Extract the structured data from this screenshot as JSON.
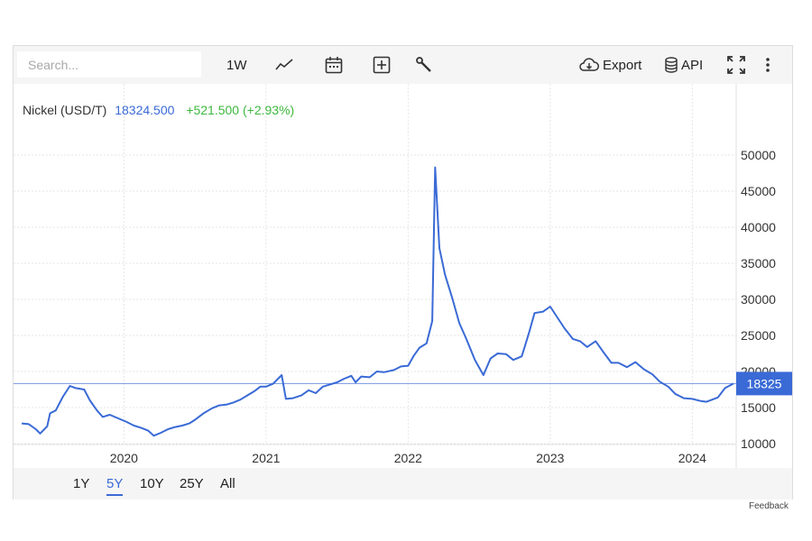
{
  "search": {
    "placeholder": "Search..."
  },
  "toolbar": {
    "interval_label": "1W",
    "export_label": "Export",
    "api_label": "API"
  },
  "legend": {
    "name": "Nickel (USD/T)",
    "price": "18324.500",
    "change": "+521.500 (+2.93%)"
  },
  "ranges": [
    "1Y",
    "5Y",
    "10Y",
    "25Y",
    "All"
  ],
  "active_range": "5Y",
  "feedback_label": "Feedback",
  "colors": {
    "line": "#3a6ad6",
    "change": "#3db83d",
    "price_tag": "#3a6ad6"
  },
  "chart_data": {
    "type": "line",
    "title": "Nickel (USD/T)",
    "ylim": [
      5000,
      50000
    ],
    "y_ticks": [
      10000,
      15000,
      20000,
      25000,
      30000,
      35000,
      40000,
      45000,
      50000
    ],
    "x_ticks": [
      "2020",
      "2021",
      "2022",
      "2023",
      "2024"
    ],
    "x_range": [
      2019.28,
      2024.29
    ],
    "last_value": 18325,
    "last_value_label": "18325",
    "grid": true,
    "series": [
      {
        "name": "Nickel (USD/T)",
        "points": [
          [
            2019.28,
            12800
          ],
          [
            2019.33,
            12700
          ],
          [
            2019.38,
            12000
          ],
          [
            2019.41,
            11400
          ],
          [
            2019.46,
            12400
          ],
          [
            2019.48,
            14200
          ],
          [
            2019.52,
            14600
          ],
          [
            2019.57,
            16500
          ],
          [
            2019.62,
            18000
          ],
          [
            2019.66,
            17700
          ],
          [
            2019.72,
            17500
          ],
          [
            2019.76,
            16000
          ],
          [
            2019.81,
            14600
          ],
          [
            2019.85,
            13700
          ],
          [
            2019.9,
            14000
          ],
          [
            2019.96,
            13500
          ],
          [
            2020.02,
            13000
          ],
          [
            2020.07,
            12500
          ],
          [
            2020.12,
            12200
          ],
          [
            2020.17,
            11800
          ],
          [
            2020.21,
            11100
          ],
          [
            2020.26,
            11500
          ],
          [
            2020.31,
            12000
          ],
          [
            2020.36,
            12300
          ],
          [
            2020.41,
            12500
          ],
          [
            2020.46,
            12800
          ],
          [
            2020.5,
            13300
          ],
          [
            2020.56,
            14200
          ],
          [
            2020.62,
            14900
          ],
          [
            2020.67,
            15300
          ],
          [
            2020.72,
            15400
          ],
          [
            2020.77,
            15700
          ],
          [
            2020.82,
            16100
          ],
          [
            2020.87,
            16700
          ],
          [
            2020.92,
            17300
          ],
          [
            2020.96,
            17900
          ],
          [
            2021.0,
            17900
          ],
          [
            2021.05,
            18300
          ],
          [
            2021.11,
            19500
          ],
          [
            2021.14,
            16200
          ],
          [
            2021.19,
            16300
          ],
          [
            2021.25,
            16700
          ],
          [
            2021.3,
            17400
          ],
          [
            2021.35,
            17000
          ],
          [
            2021.4,
            17900
          ],
          [
            2021.45,
            18200
          ],
          [
            2021.5,
            18500
          ],
          [
            2021.55,
            19000
          ],
          [
            2021.6,
            19400
          ],
          [
            2021.63,
            18500
          ],
          [
            2021.67,
            19300
          ],
          [
            2021.73,
            19200
          ],
          [
            2021.78,
            20000
          ],
          [
            2021.83,
            19900
          ],
          [
            2021.9,
            20200
          ],
          [
            2021.95,
            20700
          ],
          [
            2022.0,
            20800
          ],
          [
            2022.04,
            22200
          ],
          [
            2022.08,
            23300
          ],
          [
            2022.13,
            23900
          ],
          [
            2022.17,
            27000
          ],
          [
            2022.19,
            48300
          ],
          [
            2022.22,
            37100
          ],
          [
            2022.26,
            33400
          ],
          [
            2022.31,
            30200
          ],
          [
            2022.36,
            26700
          ],
          [
            2022.41,
            24500
          ],
          [
            2022.47,
            21600
          ],
          [
            2022.53,
            19500
          ],
          [
            2022.58,
            21800
          ],
          [
            2022.63,
            22500
          ],
          [
            2022.69,
            22400
          ],
          [
            2022.74,
            21600
          ],
          [
            2022.8,
            22100
          ],
          [
            2022.85,
            25300
          ],
          [
            2022.89,
            28100
          ],
          [
            2022.95,
            28300
          ],
          [
            2023.0,
            29000
          ],
          [
            2023.05,
            27500
          ],
          [
            2023.1,
            26000
          ],
          [
            2023.16,
            24500
          ],
          [
            2023.21,
            24200
          ],
          [
            2023.26,
            23400
          ],
          [
            2023.32,
            24200
          ],
          [
            2023.37,
            22800
          ],
          [
            2023.43,
            21200
          ],
          [
            2023.48,
            21200
          ],
          [
            2023.54,
            20600
          ],
          [
            2023.6,
            21300
          ],
          [
            2023.66,
            20300
          ],
          [
            2023.72,
            19600
          ],
          [
            2023.77,
            18600
          ],
          [
            2023.83,
            17900
          ],
          [
            2023.88,
            16900
          ],
          [
            2023.94,
            16300
          ],
          [
            2024.0,
            16200
          ],
          [
            2024.06,
            15900
          ],
          [
            2024.1,
            15800
          ],
          [
            2024.14,
            16100
          ],
          [
            2024.18,
            16400
          ],
          [
            2024.23,
            17700
          ],
          [
            2024.29,
            18325
          ]
        ]
      }
    ]
  }
}
